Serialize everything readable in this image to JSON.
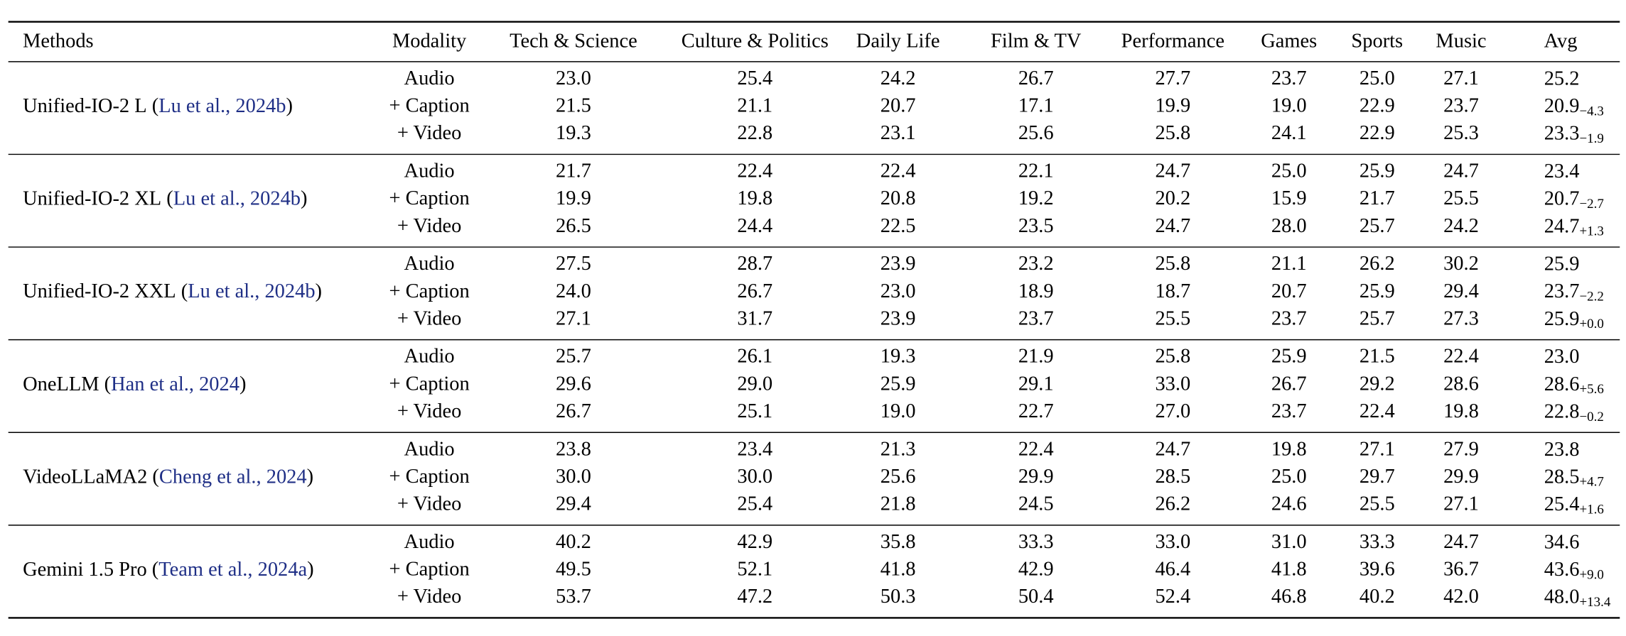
{
  "table": {
    "columns": [
      "Methods",
      "Modality",
      "Tech & Science",
      "Culture & Politics",
      "Daily Life",
      "Film & TV",
      "Performance",
      "Games",
      "Sports",
      "Music",
      "Avg"
    ],
    "groups": [
      {
        "method": "Unified-IO-2 L",
        "citation": "Lu et al., 2024b",
        "rows": [
          {
            "modality": "Audio",
            "values": [
              "23.0",
              "25.4",
              "24.2",
              "26.7",
              "27.7",
              "23.7",
              "25.0",
              "27.1"
            ],
            "avg": "25.2"
          },
          {
            "modality": "+ Caption",
            "values": [
              "21.5",
              "21.1",
              "20.7",
              "17.1",
              "19.9",
              "19.0",
              "22.9",
              "23.7"
            ],
            "avg": "20.9",
            "delta": "−4.3"
          },
          {
            "modality": "+ Video",
            "values": [
              "19.3",
              "22.8",
              "23.1",
              "25.6",
              "25.8",
              "24.1",
              "22.9",
              "25.3"
            ],
            "avg": "23.3",
            "delta": "−1.9"
          }
        ]
      },
      {
        "method": "Unified-IO-2 XL",
        "citation": "Lu et al., 2024b",
        "rows": [
          {
            "modality": "Audio",
            "values": [
              "21.7",
              "22.4",
              "22.4",
              "22.1",
              "24.7",
              "25.0",
              "25.9",
              "24.7"
            ],
            "avg": "23.4"
          },
          {
            "modality": "+ Caption",
            "values": [
              "19.9",
              "19.8",
              "20.8",
              "19.2",
              "20.2",
              "15.9",
              "21.7",
              "25.5"
            ],
            "avg": "20.7",
            "delta": "−2.7"
          },
          {
            "modality": "+ Video",
            "values": [
              "26.5",
              "24.4",
              "22.5",
              "23.5",
              "24.7",
              "28.0",
              "25.7",
              "24.2"
            ],
            "avg": "24.7",
            "delta": "+1.3"
          }
        ]
      },
      {
        "method": "Unified-IO-2 XXL",
        "citation": "Lu et al., 2024b",
        "rows": [
          {
            "modality": "Audio",
            "values": [
              "27.5",
              "28.7",
              "23.9",
              "23.2",
              "25.8",
              "21.1",
              "26.2",
              "30.2"
            ],
            "avg": "25.9"
          },
          {
            "modality": "+ Caption",
            "values": [
              "24.0",
              "26.7",
              "23.0",
              "18.9",
              "18.7",
              "20.7",
              "25.9",
              "29.4"
            ],
            "avg": "23.7",
            "delta": "−2.2"
          },
          {
            "modality": "+ Video",
            "values": [
              "27.1",
              "31.7",
              "23.9",
              "23.7",
              "25.5",
              "23.7",
              "25.7",
              "27.3"
            ],
            "avg": "25.9",
            "delta": "+0.0"
          }
        ]
      },
      {
        "method": "OneLLM",
        "citation": "Han et al., 2024",
        "rows": [
          {
            "modality": "Audio",
            "values": [
              "25.7",
              "26.1",
              "19.3",
              "21.9",
              "25.8",
              "25.9",
              "21.5",
              "22.4"
            ],
            "avg": "23.0"
          },
          {
            "modality": "+ Caption",
            "values": [
              "29.6",
              "29.0",
              "25.9",
              "29.1",
              "33.0",
              "26.7",
              "29.2",
              "28.6"
            ],
            "avg": "28.6",
            "delta": "+5.6"
          },
          {
            "modality": "+ Video",
            "values": [
              "26.7",
              "25.1",
              "19.0",
              "22.7",
              "27.0",
              "23.7",
              "22.4",
              "19.8"
            ],
            "avg": "22.8",
            "delta": "−0.2"
          }
        ]
      },
      {
        "method": "VideoLLaMA2",
        "citation": "Cheng et al., 2024",
        "rows": [
          {
            "modality": "Audio",
            "values": [
              "23.8",
              "23.4",
              "21.3",
              "22.4",
              "24.7",
              "19.8",
              "27.1",
              "27.9"
            ],
            "avg": "23.8"
          },
          {
            "modality": "+ Caption",
            "values": [
              "30.0",
              "30.0",
              "25.6",
              "29.9",
              "28.5",
              "25.0",
              "29.7",
              "29.9"
            ],
            "avg": "28.5",
            "delta": "+4.7"
          },
          {
            "modality": "+ Video",
            "values": [
              "29.4",
              "25.4",
              "21.8",
              "24.5",
              "26.2",
              "24.6",
              "25.5",
              "27.1"
            ],
            "avg": "25.4",
            "delta": "+1.6"
          }
        ]
      },
      {
        "method": "Gemini 1.5 Pro",
        "citation": "Team et al., 2024a",
        "rows": [
          {
            "modality": "Audio",
            "values": [
              "40.2",
              "42.9",
              "35.8",
              "33.3",
              "33.0",
              "31.0",
              "33.3",
              "24.7"
            ],
            "avg": "34.6"
          },
          {
            "modality": "+ Caption",
            "values": [
              "49.5",
              "52.1",
              "41.8",
              "42.9",
              "46.4",
              "41.8",
              "39.6",
              "36.7"
            ],
            "avg": "43.6",
            "delta": "+9.0"
          },
          {
            "modality": "+ Video",
            "values": [
              "53.7",
              "47.2",
              "50.3",
              "50.4",
              "52.4",
              "46.8",
              "40.2",
              "42.0"
            ],
            "avg": "48.0",
            "delta": "+13.4"
          }
        ]
      }
    ]
  }
}
